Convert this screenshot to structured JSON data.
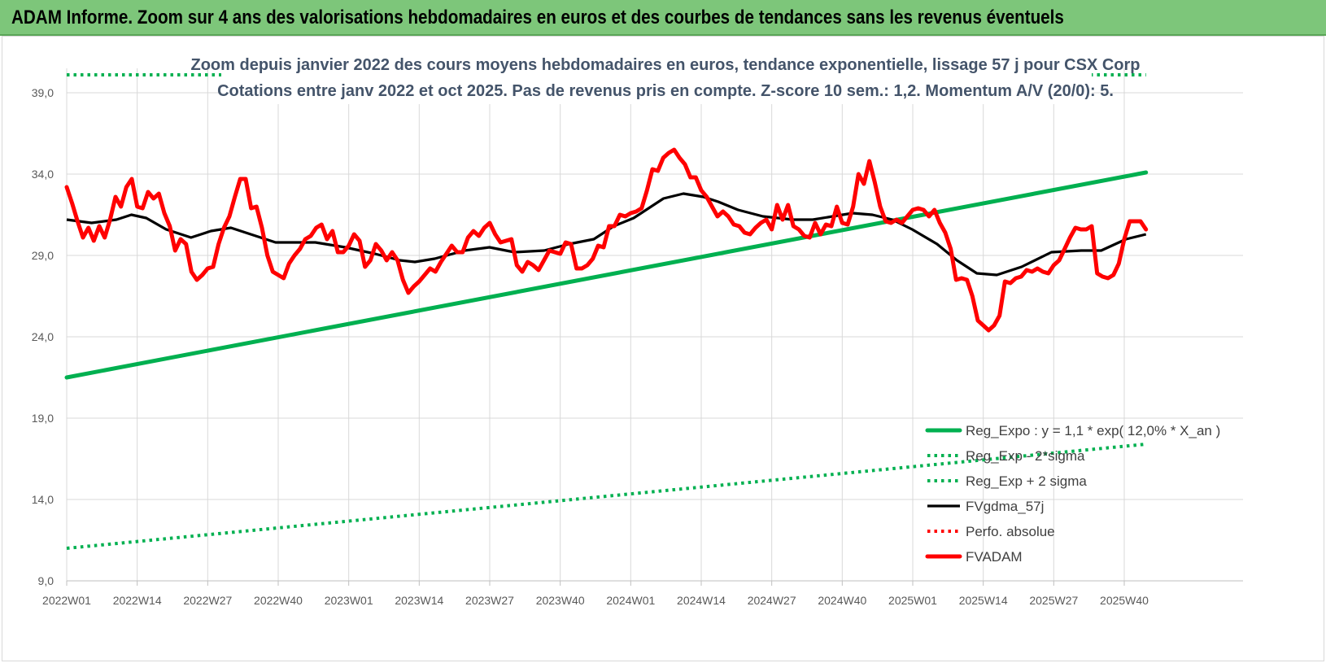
{
  "header": {
    "title": "ADAM Informe. Zoom sur 4 ans des valorisations hebdomadaires en euros et des courbes de tendances sans les revenus éventuels"
  },
  "chart_data": {
    "type": "line",
    "title": "Zoom depuis janvier 2022 des cours moyens hebdomadaires en euros, tendance exponentielle, lissage 57 j pour CSX Corp",
    "subtitle": "Cotations entre janv 2022 et oct 2025. Pas de revenus pris en compte. Z-score 10 sem.: 1,2. Momentum A/V (20/0): 5.",
    "xlabel": "",
    "ylabel": "",
    "ylim": [
      9.0,
      39.0
    ],
    "yticks": [
      "9,0",
      "14,0",
      "19,0",
      "24,0",
      "29,0",
      "34,0",
      "39,0"
    ],
    "xticks": [
      "2022W01",
      "2022W14",
      "2022W27",
      "2022W40",
      "2023W01",
      "2023W14",
      "2023W27",
      "2023W40",
      "2024W01",
      "2024W14",
      "2024W27",
      "2024W40",
      "2025W01",
      "2025W14",
      "2025W27",
      "2025W40"
    ],
    "x_range_weeks": [
      0,
      199
    ],
    "grid": true,
    "legend_position": "bottom-right",
    "series": [
      {
        "name": "Reg_Expo : y = 1,1 * exp( 12,0% * X_an )",
        "style": "solid-thick",
        "color": "#00b050",
        "points": [
          [
            0,
            21.5
          ],
          [
            199,
            34.1
          ]
        ]
      },
      {
        "name": "Reg_Exp - 2*sigma",
        "style": "dotted",
        "color": "#00b050",
        "points": [
          [
            0,
            11.0
          ],
          [
            199,
            17.4
          ]
        ]
      },
      {
        "name": "Reg_Exp + 2 sigma",
        "style": "dotted",
        "color": "#00b050",
        "points": [
          [
            0,
            40.1
          ],
          [
            199,
            40.1
          ]
        ]
      },
      {
        "name": "FVgdma_57j",
        "style": "solid",
        "color": "#000000",
        "points": [
          [
            0,
            31.2
          ],
          [
            5,
            31.0
          ],
          [
            10,
            31.2
          ],
          [
            13,
            31.5
          ],
          [
            16,
            31.3
          ],
          [
            20,
            30.6
          ],
          [
            25,
            30.1
          ],
          [
            29,
            30.5
          ],
          [
            33,
            30.7
          ],
          [
            37,
            30.3
          ],
          [
            42,
            29.8
          ],
          [
            50,
            29.8
          ],
          [
            56,
            29.5
          ],
          [
            62,
            29.1
          ],
          [
            67,
            28.7
          ],
          [
            70,
            28.6
          ],
          [
            74,
            28.8
          ],
          [
            80,
            29.3
          ],
          [
            85,
            29.5
          ],
          [
            90,
            29.2
          ],
          [
            96,
            29.3
          ],
          [
            101,
            29.7
          ],
          [
            106,
            30.0
          ],
          [
            110,
            30.8
          ],
          [
            114,
            31.3
          ],
          [
            117,
            31.9
          ],
          [
            120,
            32.5
          ],
          [
            124,
            32.8
          ],
          [
            128,
            32.6
          ],
          [
            131,
            32.3
          ],
          [
            135,
            31.8
          ],
          [
            140,
            31.4
          ],
          [
            146,
            31.2
          ],
          [
            150,
            31.2
          ],
          [
            154,
            31.4
          ],
          [
            158,
            31.6
          ],
          [
            162,
            31.5
          ],
          [
            166,
            31.2
          ],
          [
            170,
            30.6
          ],
          [
            175,
            29.7
          ],
          [
            179,
            28.7
          ],
          [
            183,
            27.9
          ],
          [
            187,
            27.8
          ],
          [
            192,
            28.3
          ],
          [
            198,
            29.2
          ],
          [
            204,
            29.3
          ],
          [
            208,
            29.3
          ],
          [
            213,
            30.0
          ],
          [
            217,
            30.3
          ]
        ]
      },
      {
        "name": "Perfo. absolue",
        "style": "dotted",
        "color": "#ff0000",
        "points": []
      },
      {
        "name": "FVADAM",
        "style": "solid-thick",
        "color": "#ff0000",
        "points": [
          [
            0,
            33.2
          ],
          [
            1,
            32.2
          ],
          [
            2,
            31.1
          ],
          [
            3,
            30.1
          ],
          [
            4,
            30.7
          ],
          [
            5,
            29.9
          ],
          [
            6,
            30.8
          ],
          [
            7,
            30.1
          ],
          [
            8,
            31.2
          ],
          [
            9,
            32.6
          ],
          [
            10,
            32.0
          ],
          [
            11,
            33.2
          ],
          [
            12,
            33.7
          ],
          [
            13,
            32.0
          ],
          [
            14,
            31.9
          ],
          [
            15,
            32.9
          ],
          [
            16,
            32.5
          ],
          [
            17,
            32.8
          ],
          [
            18,
            31.6
          ],
          [
            19,
            30.8
          ],
          [
            20,
            29.3
          ],
          [
            21,
            30.0
          ],
          [
            22,
            29.7
          ],
          [
            23,
            28.0
          ],
          [
            24,
            27.5
          ],
          [
            25,
            27.8
          ],
          [
            26,
            28.2
          ],
          [
            27,
            28.3
          ],
          [
            28,
            29.7
          ],
          [
            29,
            30.7
          ],
          [
            30,
            31.4
          ],
          [
            31,
            32.6
          ],
          [
            32,
            33.7
          ],
          [
            33,
            33.7
          ],
          [
            34,
            31.9
          ],
          [
            35,
            32.0
          ],
          [
            36,
            30.7
          ],
          [
            37,
            29.0
          ],
          [
            38,
            28.0
          ],
          [
            39,
            27.8
          ],
          [
            40,
            27.6
          ],
          [
            41,
            28.5
          ],
          [
            42,
            29.0
          ],
          [
            43,
            29.4
          ],
          [
            44,
            30.0
          ],
          [
            45,
            30.2
          ],
          [
            46,
            30.7
          ],
          [
            47,
            30.9
          ],
          [
            48,
            30.0
          ],
          [
            49,
            30.5
          ],
          [
            50,
            29.2
          ],
          [
            51,
            29.2
          ],
          [
            52,
            29.6
          ],
          [
            53,
            30.3
          ],
          [
            54,
            29.9
          ],
          [
            55,
            28.3
          ],
          [
            56,
            28.7
          ],
          [
            57,
            29.7
          ],
          [
            58,
            29.3
          ],
          [
            59,
            28.7
          ],
          [
            60,
            29.2
          ],
          [
            61,
            28.7
          ],
          [
            62,
            27.5
          ],
          [
            63,
            26.7
          ],
          [
            64,
            27.1
          ],
          [
            65,
            27.4
          ],
          [
            66,
            27.8
          ],
          [
            67,
            28.2
          ],
          [
            68,
            28.0
          ],
          [
            69,
            28.6
          ],
          [
            70,
            29.1
          ],
          [
            71,
            29.6
          ],
          [
            72,
            29.2
          ],
          [
            73,
            29.2
          ],
          [
            74,
            30.1
          ],
          [
            75,
            30.5
          ],
          [
            76,
            30.2
          ],
          [
            77,
            30.7
          ],
          [
            78,
            31.0
          ],
          [
            79,
            30.3
          ],
          [
            80,
            29.8
          ],
          [
            81,
            29.9
          ],
          [
            82,
            30.0
          ],
          [
            83,
            28.4
          ],
          [
            84,
            28.0
          ],
          [
            85,
            28.6
          ],
          [
            86,
            28.4
          ],
          [
            87,
            28.1
          ],
          [
            88,
            28.7
          ],
          [
            89,
            29.3
          ],
          [
            90,
            29.2
          ],
          [
            91,
            29.1
          ],
          [
            92,
            29.8
          ],
          [
            93,
            29.7
          ],
          [
            94,
            28.2
          ],
          [
            95,
            28.2
          ],
          [
            96,
            28.4
          ],
          [
            97,
            28.8
          ],
          [
            98,
            29.6
          ],
          [
            99,
            29.5
          ],
          [
            100,
            30.8
          ],
          [
            101,
            30.8
          ],
          [
            102,
            31.5
          ],
          [
            103,
            31.4
          ],
          [
            104,
            31.6
          ],
          [
            105,
            31.7
          ],
          [
            106,
            31.9
          ],
          [
            107,
            33.0
          ],
          [
            108,
            34.3
          ],
          [
            109,
            34.2
          ],
          [
            110,
            35.0
          ],
          [
            111,
            35.3
          ],
          [
            112,
            35.5
          ],
          [
            113,
            35.0
          ],
          [
            114,
            34.6
          ],
          [
            115,
            33.8
          ],
          [
            116,
            33.8
          ],
          [
            117,
            33.0
          ],
          [
            118,
            32.6
          ],
          [
            119,
            32.0
          ],
          [
            120,
            31.4
          ],
          [
            121,
            31.7
          ],
          [
            122,
            31.4
          ],
          [
            123,
            30.9
          ],
          [
            124,
            30.8
          ],
          [
            125,
            30.4
          ],
          [
            126,
            30.3
          ],
          [
            127,
            30.7
          ],
          [
            128,
            31.0
          ],
          [
            129,
            31.2
          ],
          [
            130,
            30.6
          ],
          [
            131,
            32.1
          ],
          [
            132,
            31.2
          ],
          [
            133,
            32.1
          ],
          [
            134,
            30.8
          ],
          [
            135,
            30.6
          ],
          [
            136,
            30.2
          ],
          [
            137,
            30.1
          ],
          [
            138,
            31.0
          ],
          [
            139,
            30.3
          ],
          [
            140,
            30.9
          ],
          [
            141,
            30.8
          ],
          [
            142,
            32.0
          ],
          [
            143,
            31.0
          ],
          [
            144,
            30.9
          ],
          [
            145,
            32.0
          ],
          [
            146,
            34.0
          ],
          [
            147,
            33.4
          ],
          [
            148,
            34.8
          ],
          [
            149,
            33.5
          ],
          [
            150,
            32.0
          ],
          [
            151,
            31.1
          ],
          [
            152,
            31.0
          ],
          [
            153,
            31.2
          ],
          [
            154,
            31.0
          ],
          [
            155,
            31.4
          ],
          [
            156,
            31.8
          ],
          [
            157,
            31.9
          ],
          [
            158,
            31.8
          ],
          [
            159,
            31.4
          ],
          [
            160,
            31.8
          ],
          [
            161,
            31.0
          ],
          [
            162,
            30.4
          ],
          [
            163,
            29.4
          ],
          [
            164,
            27.5
          ],
          [
            165,
            27.6
          ],
          [
            166,
            27.5
          ],
          [
            167,
            26.5
          ],
          [
            168,
            25.0
          ],
          [
            169,
            24.7
          ],
          [
            170,
            24.4
          ],
          [
            171,
            24.7
          ],
          [
            172,
            25.3
          ],
          [
            173,
            27.4
          ],
          [
            174,
            27.3
          ],
          [
            175,
            27.6
          ],
          [
            176,
            27.7
          ],
          [
            177,
            28.1
          ],
          [
            178,
            28.0
          ],
          [
            179,
            28.2
          ],
          [
            180,
            28.0
          ],
          [
            181,
            27.9
          ],
          [
            182,
            28.4
          ],
          [
            183,
            28.7
          ],
          [
            184,
            29.4
          ],
          [
            185,
            30.1
          ],
          [
            186,
            30.7
          ],
          [
            187,
            30.6
          ],
          [
            188,
            30.6
          ],
          [
            189,
            30.8
          ],
          [
            190,
            27.9
          ],
          [
            191,
            27.7
          ],
          [
            192,
            27.6
          ],
          [
            193,
            27.8
          ],
          [
            194,
            28.5
          ],
          [
            195,
            30.0
          ],
          [
            196,
            31.1
          ],
          [
            197,
            31.1
          ],
          [
            198,
            31.1
          ],
          [
            199,
            30.6
          ]
        ]
      }
    ]
  },
  "colors": {
    "header_bg": "#7dc67a",
    "subtitle_text": "#44546a",
    "trend_green": "#00b050",
    "price_red": "#ff0000",
    "smooth_black": "#000000",
    "grid": "#d9d9d9"
  }
}
